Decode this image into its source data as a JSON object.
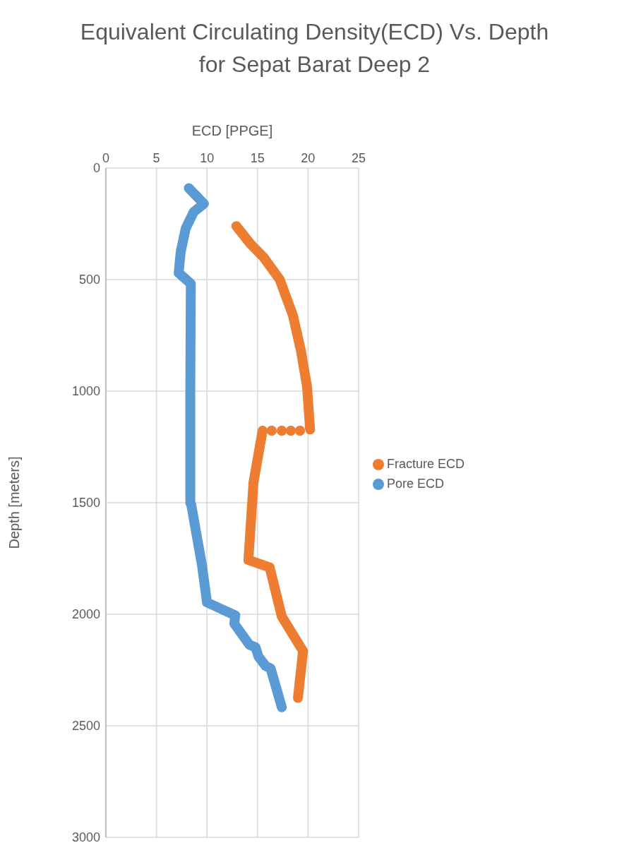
{
  "chart_data": {
    "type": "line",
    "title": "Equivalent Circulating Density(ECD) Vs. Depth\nfor Sepat Barat Deep 2",
    "xlabel": "ECD [PPGE]",
    "ylabel": "Depth [meters]",
    "xlim": [
      0,
      25
    ],
    "xticks": [
      0,
      5,
      10,
      15,
      20,
      25
    ],
    "ylim": [
      3000,
      0
    ],
    "yticks": [
      0,
      500,
      1000,
      1500,
      2000,
      2500,
      3000
    ],
    "grid": true,
    "legend": "right",
    "series": [
      {
        "name": "Pore ECD",
        "color": "#5b9bd5",
        "x": [
          8.2,
          9.7,
          8.7,
          7.9,
          7.4,
          7.2,
          8.4,
          8.35,
          8.35,
          8.45,
          9.0,
          9.5,
          10.0,
          12.8,
          12.7,
          14.2,
          14.8,
          15.1,
          15.8,
          16.3,
          17.4
        ],
        "values": [
          90,
          160,
          196,
          270,
          376,
          470,
          518,
          1000,
          1500,
          1510,
          1652,
          1778,
          1947,
          2005,
          2042,
          2137,
          2148,
          2190,
          2232,
          2243,
          2417
        ]
      },
      {
        "name": "Fracture ECD",
        "color": "#ed7d31",
        "x": [
          12.9,
          14.3,
          15.6,
          17.2,
          18.5,
          19.3,
          19.9,
          20.2,
          null,
          19.2,
          null,
          18.3,
          null,
          17.4,
          null,
          16.4,
          null,
          15.5,
          14.6,
          14.1,
          16.2,
          17.4,
          19.5,
          19.0
        ],
        "values": [
          260,
          340,
          400,
          500,
          660,
          820,
          980,
          1172,
          null,
          1177,
          null,
          1177,
          null,
          1177,
          null,
          1177,
          null,
          1177,
          1410,
          1757,
          1790,
          2010,
          2165,
          2375
        ]
      }
    ]
  }
}
